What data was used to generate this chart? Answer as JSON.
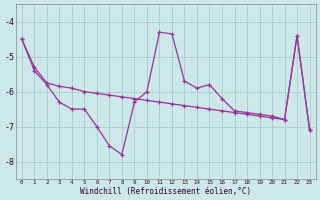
{
  "xlabel": "Windchill (Refroidissement éolien,°C)",
  "background_color": "#cce8e8",
  "line_color": "#993399",
  "grid_color": "#aacccc",
  "x": [
    0,
    1,
    2,
    3,
    4,
    5,
    6,
    7,
    8,
    9,
    10,
    11,
    12,
    13,
    14,
    15,
    16,
    17,
    18,
    19,
    20,
    21,
    22,
    23
  ],
  "line1": [
    -4.5,
    -5.4,
    -5.8,
    -6.3,
    -6.5,
    -6.5,
    -7.0,
    -7.55,
    -7.8,
    -6.3,
    -6.0,
    -4.3,
    -4.35,
    -5.7,
    -5.9,
    -5.8,
    -6.2,
    -6.55,
    -6.6,
    -6.65,
    -6.7,
    -6.8,
    -4.4,
    -7.1
  ],
  "line2": [
    -4.5,
    -5.3,
    -5.75,
    -5.85,
    -5.9,
    -6.0,
    -6.05,
    -6.1,
    -6.15,
    -6.2,
    -6.25,
    -6.3,
    -6.35,
    -6.4,
    -6.45,
    -6.5,
    -6.55,
    -6.6,
    -6.65,
    -6.7,
    -6.75,
    -6.8,
    -4.4,
    -7.1
  ],
  "ylim": [
    -8.5,
    -3.5
  ],
  "yticks": [
    -8,
    -7,
    -6,
    -5,
    -4
  ],
  "xlim": [
    -0.5,
    23.5
  ]
}
